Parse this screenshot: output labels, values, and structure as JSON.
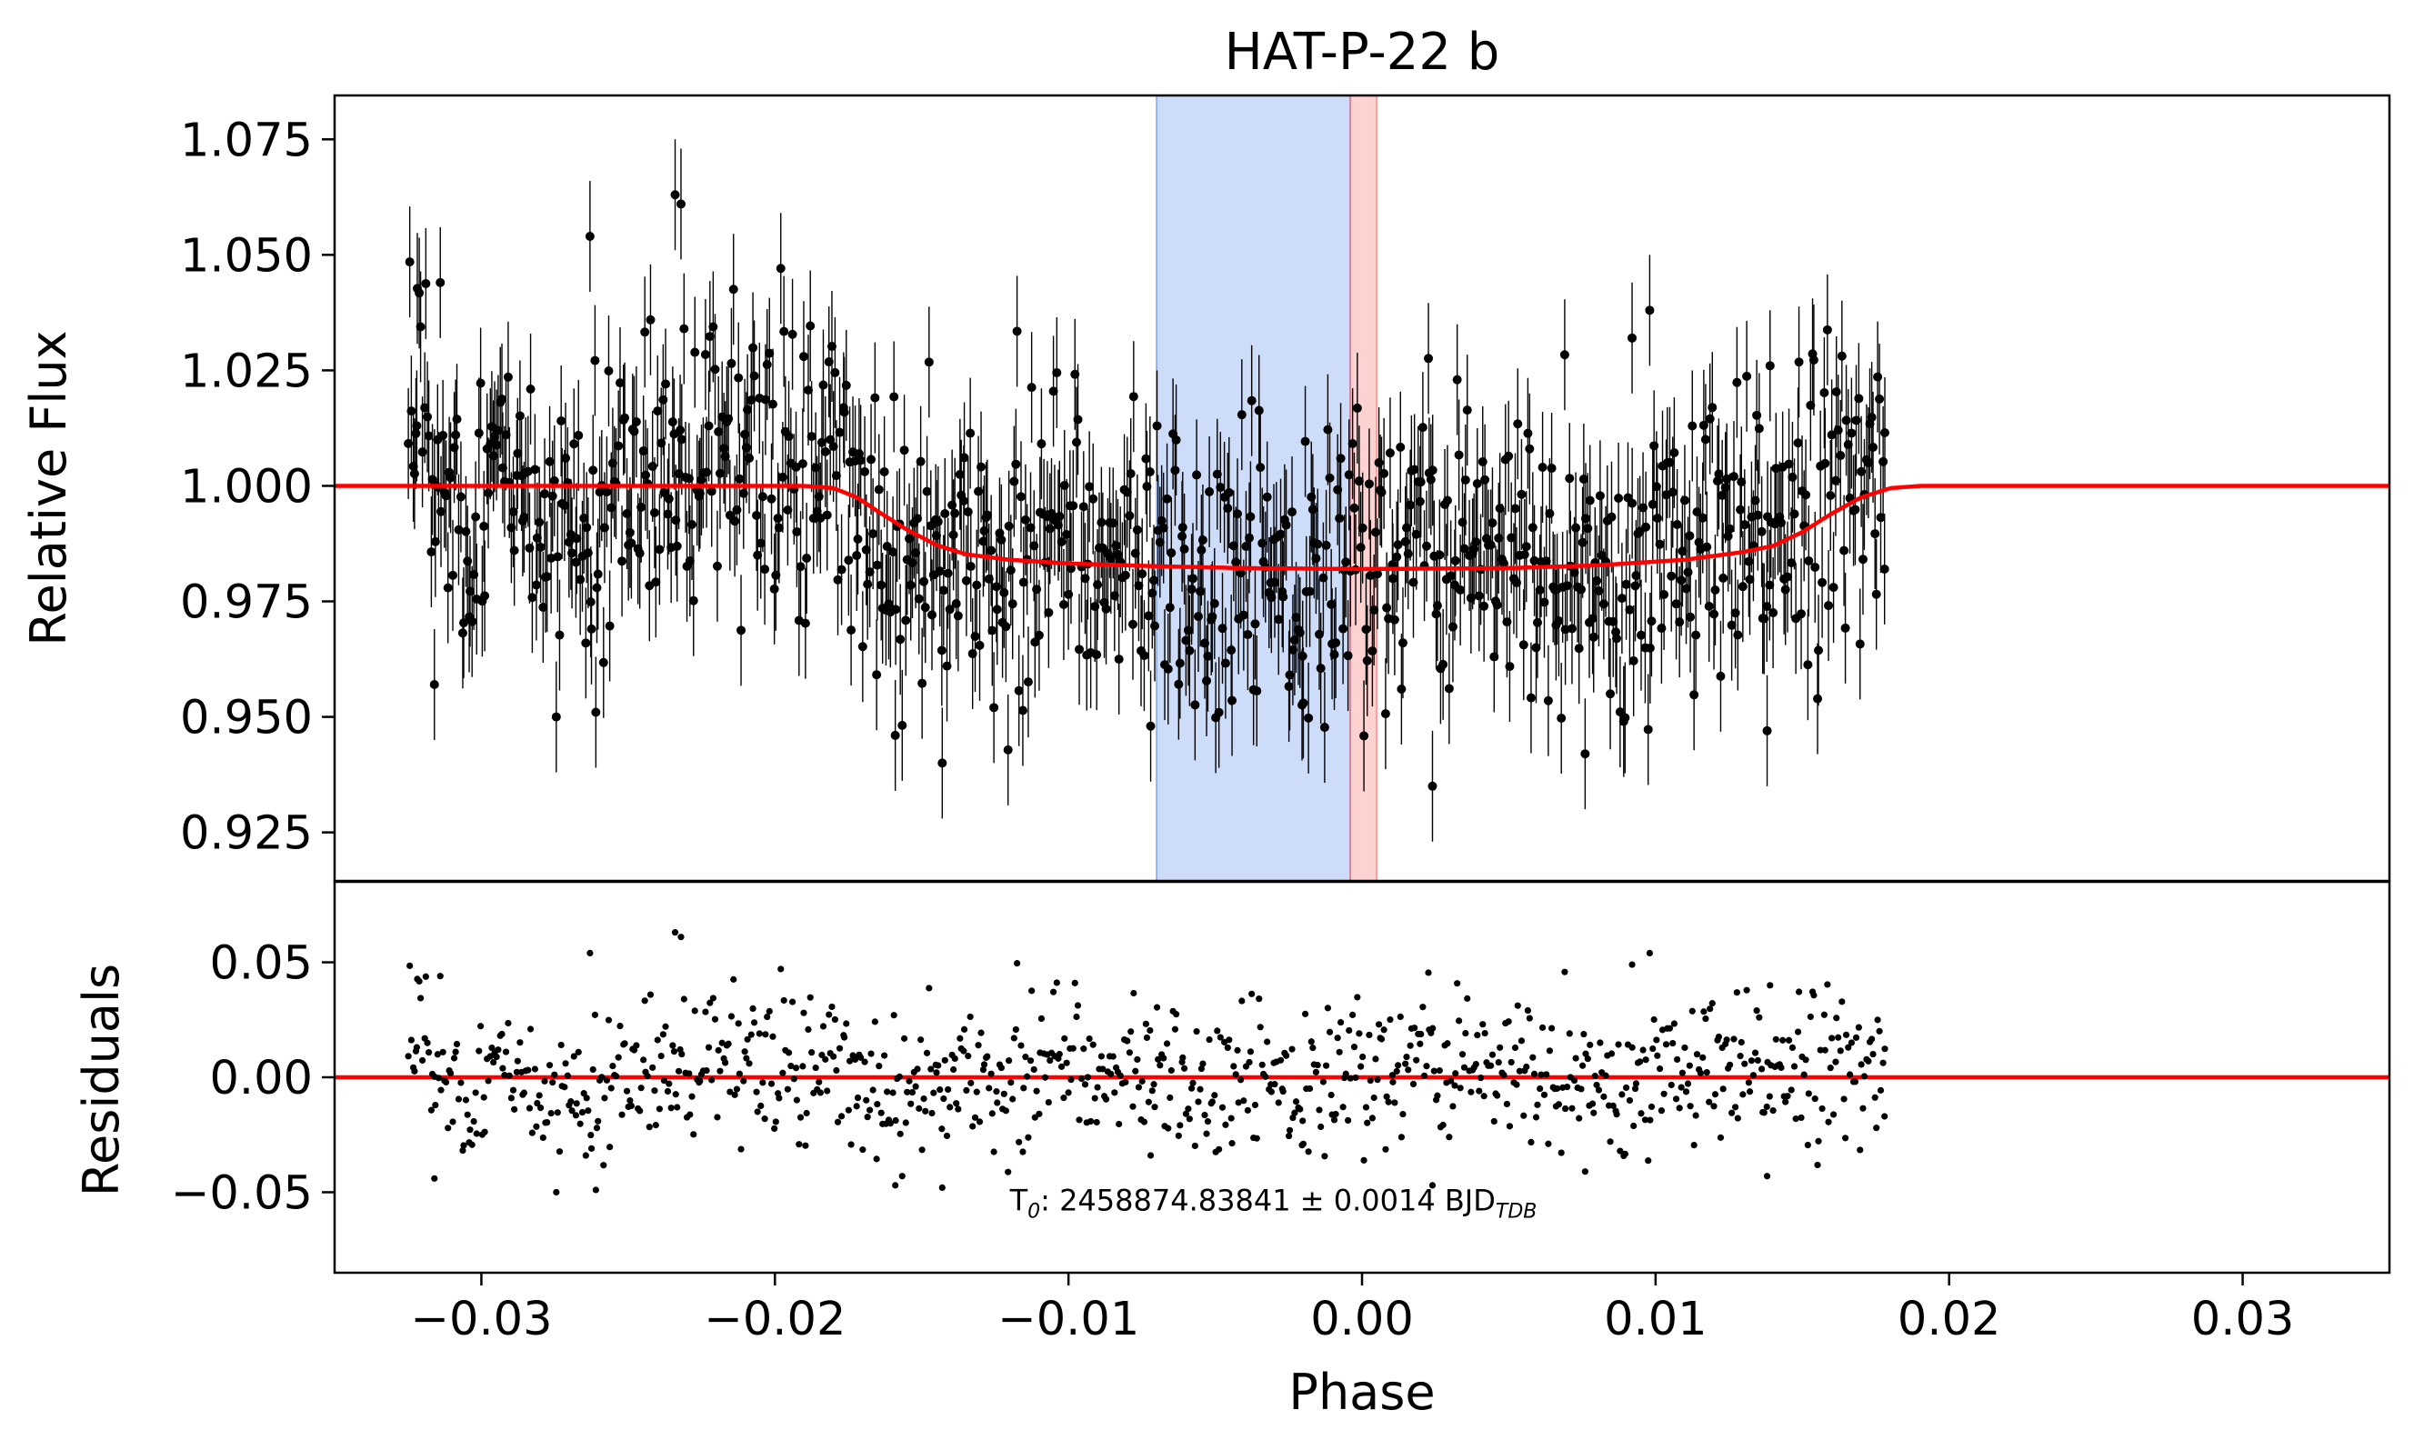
{
  "chart_data": {
    "title": "HAT-P-22 b",
    "xlabel": "Phase",
    "xlim": [
      -0.035,
      0.035
    ],
    "xticks": [
      -0.03,
      -0.02,
      -0.01,
      0.0,
      0.01,
      0.02,
      0.03
    ],
    "xtick_labels": [
      "−0.03",
      "−0.02",
      "−0.01",
      "0.00",
      "0.01",
      "0.02",
      "0.03"
    ],
    "panels": [
      {
        "type": "scatter",
        "name": "light-curve",
        "ylabel": "Relative Flux",
        "ylim": [
          0.9145,
          1.0845
        ],
        "yticks": [
          0.925,
          0.95,
          0.975,
          1.0,
          1.025,
          1.05,
          1.075
        ],
        "ytick_labels": [
          "0.925",
          "0.950",
          "0.975",
          "1.000",
          "1.025",
          "1.050",
          "1.075"
        ],
        "data_x_range": [
          -0.0325,
          0.0178
        ],
        "error_bar_approx": 0.012,
        "shaded_regions": [
          {
            "name": "blue-band",
            "x_range": [
              -0.007,
              -0.0004
            ],
            "color": "#6495ed",
            "alpha": 0.32
          },
          {
            "name": "red-band",
            "x_range": [
              -0.0004,
              0.0005
            ],
            "color": "#ff6b6b",
            "alpha": 0.3
          }
        ],
        "model_color": "#ff0000",
        "model_points": [
          [
            -0.035,
            1.0
          ],
          [
            -0.019,
            1.0
          ],
          [
            -0.018,
            0.9995
          ],
          [
            -0.0172,
            0.9975
          ],
          [
            -0.0165,
            0.9945
          ],
          [
            -0.0155,
            0.9905
          ],
          [
            -0.0145,
            0.9872
          ],
          [
            -0.0135,
            0.9852
          ],
          [
            -0.012,
            0.984
          ],
          [
            -0.01,
            0.9832
          ],
          [
            -0.007,
            0.9826
          ],
          [
            -0.004,
            0.9822
          ],
          [
            0.0,
            0.982
          ],
          [
            0.005,
            0.9822
          ],
          [
            0.008,
            0.9828
          ],
          [
            0.011,
            0.984
          ],
          [
            0.013,
            0.9857
          ],
          [
            0.014,
            0.987
          ],
          [
            0.015,
            0.99
          ],
          [
            0.016,
            0.994
          ],
          [
            0.017,
            0.9975
          ],
          [
            0.018,
            0.9995
          ],
          [
            0.019,
            1.0
          ],
          [
            0.035,
            1.0
          ]
        ]
      },
      {
        "type": "scatter",
        "name": "residuals",
        "ylabel": "Residuals",
        "ylim": [
          -0.085,
          0.085
        ],
        "yticks": [
          -0.05,
          0.0,
          0.05
        ],
        "ytick_labels": [
          "−0.05",
          "0.00",
          "0.05"
        ],
        "zero_line_color": "#ff0000"
      }
    ],
    "annotation": {
      "prefix": "T",
      "prefix_sub": "0",
      "text": ": 2458874.83841 ± 0.0014 BJD",
      "suffix_sub": "TDB",
      "anchor": [
        -0.012,
        -0.058
      ]
    },
    "observations_sample": [
      {
        "x": -0.0322,
        "flux": 1.013,
        "residual": 0.013
      },
      {
        "x": -0.0316,
        "flux": 0.957,
        "residual": -0.044
      },
      {
        "x": -0.0314,
        "flux": 1.044,
        "residual": 0.044
      },
      {
        "x": -0.0263,
        "flux": 1.054,
        "residual": 0.054
      },
      {
        "x": -0.0261,
        "flux": 0.951,
        "residual": -0.049
      },
      {
        "x": -0.0234,
        "flux": 1.063,
        "residual": 0.063
      },
      {
        "x": -0.0232,
        "flux": 1.061,
        "residual": 0.061
      },
      {
        "x": -0.0159,
        "flux": 0.946,
        "residual": -0.047
      },
      {
        "x": -0.0143,
        "flux": 0.94,
        "residual": -0.048
      },
      {
        "x": -0.0072,
        "flux": 0.948,
        "residual": -0.034
      },
      {
        "x": -0.002,
        "flux": 0.953,
        "residual": -0.029
      },
      {
        "x": 0.0024,
        "flux": 0.935,
        "residual": -0.047
      },
      {
        "x": 0.0076,
        "flux": 0.942,
        "residual": -0.041
      },
      {
        "x": 0.0092,
        "flux": 1.032,
        "residual": 0.049
      },
      {
        "x": 0.0098,
        "flux": 1.038,
        "residual": 0.054
      },
      {
        "x": 0.0138,
        "flux": 0.947,
        "residual": -0.043
      },
      {
        "x": 0.0139,
        "flux": 1.026,
        "residual": 0.04
      },
      {
        "x": 0.0178,
        "flux": 0.982,
        "residual": -0.017
      }
    ],
    "sample_count_approx": 1000,
    "marker_color": "#000000"
  }
}
